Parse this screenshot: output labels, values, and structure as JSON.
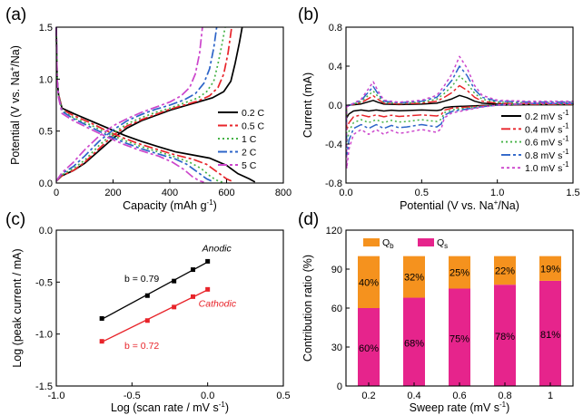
{
  "chart_data": [
    {
      "id": "a",
      "panel_label": "(a)",
      "type": "line",
      "xlabel_parts": [
        "Capacity (mAh g",
        "-1",
        ")"
      ],
      "ylabel_parts": [
        "Potential (V vs. Na",
        "+",
        "/Na)"
      ],
      "xlim": [
        0,
        800
      ],
      "ylim": [
        0,
        1.5
      ],
      "xticks": [
        0,
        200,
        400,
        600,
        800
      ],
      "yticks": [
        0,
        0.5,
        1.0,
        1.5
      ],
      "xtick_labels": [
        "0",
        "200",
        "400",
        "600",
        "800"
      ],
      "ytick_labels": [
        "0.0",
        "0.5",
        "1.0",
        "1.5"
      ],
      "legend_position": "right",
      "series": [
        {
          "name": "0.2 C",
          "color": "#000000",
          "dash": "solid",
          "charge_points": [
            [
              0,
              0.02
            ],
            [
              20,
              0.07
            ],
            [
              60,
              0.12
            ],
            [
              100,
              0.19
            ],
            [
              150,
              0.31
            ],
            [
              200,
              0.43
            ],
            [
              250,
              0.53
            ],
            [
              300,
              0.6
            ],
            [
              350,
              0.65
            ],
            [
              400,
              0.7
            ],
            [
              450,
              0.74
            ],
            [
              500,
              0.78
            ],
            [
              550,
              0.82
            ],
            [
              590,
              0.88
            ],
            [
              615,
              0.98
            ],
            [
              630,
              1.15
            ],
            [
              645,
              1.35
            ],
            [
              655,
              1.5
            ]
          ],
          "discharge_points": [
            [
              0,
              1.5
            ],
            [
              3,
              1.0
            ],
            [
              8,
              0.85
            ],
            [
              20,
              0.72
            ],
            [
              60,
              0.67
            ],
            [
              120,
              0.6
            ],
            [
              180,
              0.53
            ],
            [
              240,
              0.46
            ],
            [
              300,
              0.4
            ],
            [
              360,
              0.35
            ],
            [
              420,
              0.3
            ],
            [
              480,
              0.27
            ],
            [
              540,
              0.24
            ],
            [
              600,
              0.17
            ],
            [
              640,
              0.09
            ],
            [
              680,
              0.04
            ],
            [
              700,
              0.01
            ]
          ]
        },
        {
          "name": "0.5 C",
          "color": "#e8242a",
          "dash": "10,3,3,3",
          "charge_points": [
            [
              0,
              0.02
            ],
            [
              20,
              0.07
            ],
            [
              60,
              0.12
            ],
            [
              100,
              0.2
            ],
            [
              150,
              0.33
            ],
            [
              200,
              0.46
            ],
            [
              250,
              0.55
            ],
            [
              300,
              0.61
            ],
            [
              350,
              0.66
            ],
            [
              400,
              0.71
            ],
            [
              450,
              0.75
            ],
            [
              500,
              0.79
            ],
            [
              540,
              0.84
            ],
            [
              570,
              0.92
            ],
            [
              590,
              1.05
            ],
            [
              605,
              1.25
            ],
            [
              618,
              1.5
            ]
          ],
          "discharge_points": [
            [
              0,
              1.5
            ],
            [
              3,
              1.0
            ],
            [
              8,
              0.85
            ],
            [
              20,
              0.71
            ],
            [
              60,
              0.65
            ],
            [
              120,
              0.58
            ],
            [
              180,
              0.5
            ],
            [
              240,
              0.43
            ],
            [
              300,
              0.37
            ],
            [
              360,
              0.32
            ],
            [
              420,
              0.27
            ],
            [
              480,
              0.23
            ],
            [
              530,
              0.18
            ],
            [
              570,
              0.1
            ],
            [
              600,
              0.04
            ],
            [
              625,
              0.01
            ]
          ]
        },
        {
          "name": "1 C",
          "color": "#44b246",
          "dash": "2,3",
          "charge_points": [
            [
              0,
              0.02
            ],
            [
              20,
              0.08
            ],
            [
              60,
              0.14
            ],
            [
              100,
              0.22
            ],
            [
              150,
              0.36
            ],
            [
              200,
              0.48
            ],
            [
              250,
              0.57
            ],
            [
              300,
              0.63
            ],
            [
              350,
              0.68
            ],
            [
              400,
              0.72
            ],
            [
              450,
              0.77
            ],
            [
              500,
              0.82
            ],
            [
              530,
              0.88
            ],
            [
              555,
              0.98
            ],
            [
              570,
              1.15
            ],
            [
              585,
              1.35
            ],
            [
              595,
              1.5
            ]
          ],
          "discharge_points": [
            [
              0,
              1.5
            ],
            [
              3,
              1.0
            ],
            [
              8,
              0.84
            ],
            [
              20,
              0.7
            ],
            [
              60,
              0.63
            ],
            [
              120,
              0.56
            ],
            [
              180,
              0.48
            ],
            [
              240,
              0.41
            ],
            [
              300,
              0.35
            ],
            [
              360,
              0.3
            ],
            [
              420,
              0.25
            ],
            [
              470,
              0.2
            ],
            [
              510,
              0.14
            ],
            [
              545,
              0.06
            ],
            [
              570,
              0.02
            ],
            [
              585,
              0.01
            ]
          ]
        },
        {
          "name": "2 C",
          "color": "#2c64c8",
          "dash": "10,3,3,3",
          "charge_points": [
            [
              0,
              0.02
            ],
            [
              20,
              0.09
            ],
            [
              60,
              0.16
            ],
            [
              100,
              0.26
            ],
            [
              150,
              0.4
            ],
            [
              200,
              0.51
            ],
            [
              250,
              0.6
            ],
            [
              300,
              0.66
            ],
            [
              350,
              0.71
            ],
            [
              400,
              0.75
            ],
            [
              450,
              0.8
            ],
            [
              490,
              0.86
            ],
            [
              520,
              0.96
            ],
            [
              540,
              1.1
            ],
            [
              555,
              1.3
            ],
            [
              565,
              1.5
            ]
          ],
          "discharge_points": [
            [
              0,
              1.5
            ],
            [
              3,
              1.0
            ],
            [
              8,
              0.83
            ],
            [
              20,
              0.69
            ],
            [
              60,
              0.62
            ],
            [
              120,
              0.54
            ],
            [
              180,
              0.46
            ],
            [
              240,
              0.39
            ],
            [
              300,
              0.33
            ],
            [
              360,
              0.28
            ],
            [
              420,
              0.23
            ],
            [
              460,
              0.18
            ],
            [
              500,
              0.1
            ],
            [
              530,
              0.04
            ],
            [
              555,
              0.01
            ]
          ]
        },
        {
          "name": "5 C",
          "color": "#cc46cc",
          "dash": "10,3,3,3",
          "charge_points": [
            [
              0,
              0.02
            ],
            [
              20,
              0.1
            ],
            [
              60,
              0.2
            ],
            [
              100,
              0.32
            ],
            [
              150,
              0.45
            ],
            [
              200,
              0.55
            ],
            [
              250,
              0.62
            ],
            [
              300,
              0.68
            ],
            [
              350,
              0.73
            ],
            [
              400,
              0.78
            ],
            [
              440,
              0.84
            ],
            [
              470,
              0.92
            ],
            [
              490,
              1.05
            ],
            [
              505,
              1.25
            ],
            [
              515,
              1.5
            ]
          ],
          "discharge_points": [
            [
              0,
              1.5
            ],
            [
              3,
              1.0
            ],
            [
              8,
              0.82
            ],
            [
              20,
              0.67
            ],
            [
              60,
              0.6
            ],
            [
              120,
              0.52
            ],
            [
              180,
              0.44
            ],
            [
              240,
              0.37
            ],
            [
              300,
              0.31
            ],
            [
              360,
              0.26
            ],
            [
              410,
              0.2
            ],
            [
              450,
              0.13
            ],
            [
              480,
              0.06
            ],
            [
              505,
              0.02
            ],
            [
              520,
              0.01
            ]
          ]
        }
      ]
    },
    {
      "id": "b",
      "panel_label": "(b)",
      "type": "line",
      "xlabel_parts": [
        "Potential (V vs. Na",
        "+",
        "/Na)"
      ],
      "ylabel": "Current (mA)",
      "xlim": [
        0,
        1.5
      ],
      "ylim": [
        -0.8,
        0.8
      ],
      "xticks": [
        0,
        0.5,
        1.0,
        1.5
      ],
      "yticks": [
        -0.8,
        -0.4,
        0,
        0.4,
        0.8
      ],
      "xtick_labels": [
        "0.0",
        "0.5",
        "1.0",
        "1.5"
      ],
      "ytick_labels": [
        "-0.8",
        "-0.4",
        "0.0",
        "0.4",
        "0.8"
      ],
      "legend_position": "lower-right",
      "series": [
        {
          "name_main": "0.2 mV s",
          "name_sup": "-1",
          "color": "#000000",
          "dash": "solid",
          "scale": 0.2
        },
        {
          "name_main": "0.4 mV s",
          "name_sup": "-1",
          "color": "#e8242a",
          "dash": "10,3,3,3",
          "scale": 0.4
        },
        {
          "name_main": "0.6 mV s",
          "name_sup": "-1",
          "color": "#44b246",
          "dash": "2,3",
          "scale": 0.6
        },
        {
          "name_main": "0.8 mV s",
          "name_sup": "-1",
          "color": "#2c64c8",
          "dash": "10,3,3,3",
          "scale": 0.8
        },
        {
          "name_main": "1.0 mV s",
          "name_sup": "-1",
          "color": "#cc46cc",
          "dash": "3,3",
          "scale": 1.0
        }
      ],
      "anodic_shape": [
        [
          0.002,
          -0.02
        ],
        [
          0.05,
          0.02
        ],
        [
          0.1,
          0.06
        ],
        [
          0.15,
          0.17
        ],
        [
          0.18,
          0.24
        ],
        [
          0.21,
          0.15
        ],
        [
          0.25,
          0.05
        ],
        [
          0.35,
          0.03
        ],
        [
          0.5,
          0.05
        ],
        [
          0.6,
          0.1
        ],
        [
          0.65,
          0.2
        ],
        [
          0.7,
          0.32
        ],
        [
          0.75,
          0.5
        ],
        [
          0.8,
          0.38
        ],
        [
          0.85,
          0.2
        ],
        [
          0.9,
          0.1
        ],
        [
          1.0,
          0.05
        ],
        [
          1.2,
          0.04
        ],
        [
          1.5,
          0.04
        ]
      ],
      "cathodic_shape": [
        [
          1.5,
          0.02
        ],
        [
          1.2,
          0.02
        ],
        [
          1.0,
          0.0
        ],
        [
          0.9,
          -0.02
        ],
        [
          0.8,
          -0.05
        ],
        [
          0.7,
          -0.08
        ],
        [
          0.65,
          -0.13
        ],
        [
          0.63,
          -0.24
        ],
        [
          0.6,
          -0.28
        ],
        [
          0.5,
          -0.25
        ],
        [
          0.4,
          -0.28
        ],
        [
          0.35,
          -0.29
        ],
        [
          0.3,
          -0.26
        ],
        [
          0.25,
          -0.3
        ],
        [
          0.2,
          -0.25
        ],
        [
          0.15,
          -0.3
        ],
        [
          0.1,
          -0.25
        ],
        [
          0.05,
          -0.3
        ],
        [
          0.02,
          -0.45
        ],
        [
          0.005,
          -0.65
        ],
        [
          0.002,
          -0.02
        ]
      ]
    },
    {
      "id": "c",
      "panel_label": "(c)",
      "type": "scatter",
      "xlabel_parts": [
        "Log (scan rate / mV s",
        "-1",
        ")"
      ],
      "ylabel": "Log (peak current / mA)",
      "xlim": [
        -1.0,
        0.5
      ],
      "ylim": [
        -1.5,
        0
      ],
      "xticks": [
        -1.0,
        -0.5,
        0,
        0.5
      ],
      "yticks": [
        -1.5,
        -1.0,
        -0.5,
        0
      ],
      "xtick_labels": [
        "-1.0",
        "-0.5",
        "0.0",
        "0.5"
      ],
      "ytick_labels": [
        "-1.5",
        "-1.0",
        "-0.5",
        "0.0"
      ],
      "series": [
        {
          "name": "Anodic",
          "b_label": "b = 0.79",
          "color": "#000000",
          "x": [
            -0.699,
            -0.398,
            -0.222,
            -0.097,
            0
          ],
          "y": [
            -0.85,
            -0.63,
            -0.49,
            -0.38,
            -0.3
          ]
        },
        {
          "name": "Cathodic",
          "b_label": "b = 0.72",
          "color": "#e8242a",
          "x": [
            -0.699,
            -0.398,
            -0.222,
            -0.097,
            0
          ],
          "y": [
            -1.07,
            -0.87,
            -0.74,
            -0.64,
            -0.57
          ]
        }
      ]
    },
    {
      "id": "d",
      "panel_label": "(d)",
      "type": "bar",
      "xlabel_parts": [
        "Sweep rate (mV s",
        "-1",
        ")"
      ],
      "ylabel": "Contribution ratio (%)",
      "categories": [
        "0.2",
        "0.4",
        "0.6",
        "0.8",
        "1"
      ],
      "ylim": [
        0,
        120
      ],
      "yticks": [
        0,
        30,
        60,
        90,
        120
      ],
      "ytick_labels": [
        "0",
        "30",
        "60",
        "90",
        "120"
      ],
      "legend_position": "top-left",
      "series": [
        {
          "name": "Q_s",
          "legend_main": "Q",
          "legend_sub": "s",
          "color": "#e6248c",
          "values": [
            60,
            68,
            75,
            78,
            81
          ],
          "labels": [
            "60%",
            "68%",
            "75%",
            "78%",
            "81%"
          ]
        },
        {
          "name": "Q_b",
          "legend_main": "Q",
          "legend_sub": "b",
          "color": "#f5921e",
          "values": [
            40,
            32,
            25,
            22,
            19
          ],
          "labels": [
            "40%",
            "32%",
            "25%",
            "22%",
            "19%"
          ]
        }
      ]
    }
  ]
}
